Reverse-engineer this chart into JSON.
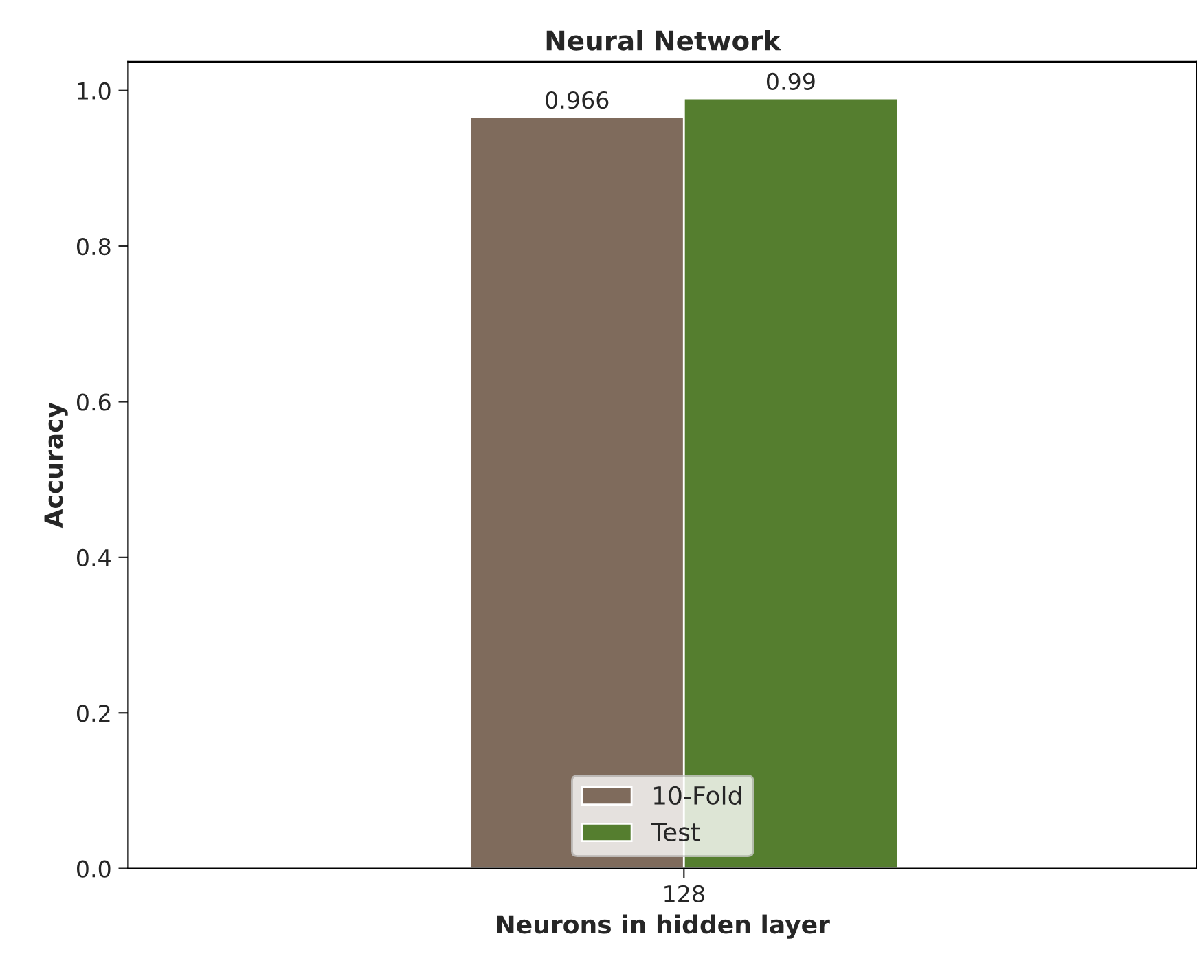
{
  "chart_data": {
    "type": "bar",
    "title": "Neural Network",
    "xlabel": "Neurons in hidden layer",
    "ylabel": "Accuracy",
    "categories": [
      "128"
    ],
    "series": [
      {
        "name": "10-Fold",
        "color": "#7f6b5c",
        "values": [
          0.966
        ]
      },
      {
        "name": "Test",
        "color": "#557e2f",
        "values": [
          0.99
        ]
      }
    ],
    "ylim": [
      0,
      1.037
    ],
    "yticks": [
      {
        "value": 0,
        "label": "0.0"
      },
      0.2,
      0.4,
      0.6,
      0.8,
      {
        "value": 1,
        "label": "1.0"
      }
    ],
    "data_labels": true,
    "legend": "bottom",
    "grid": false
  }
}
